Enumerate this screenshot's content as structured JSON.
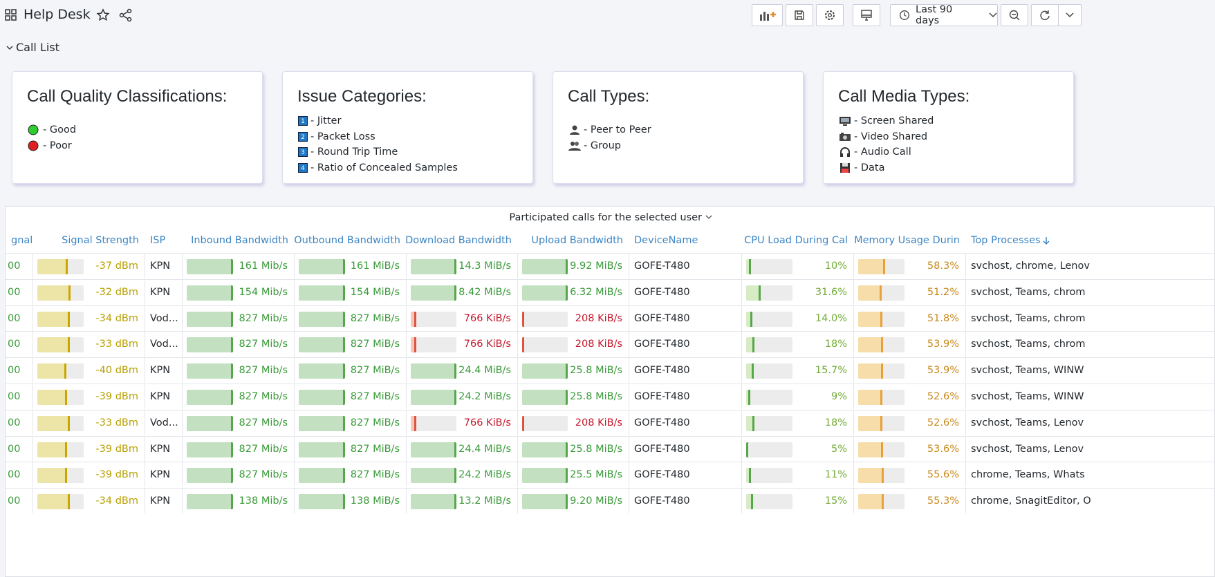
{
  "header": {
    "title": "Help Desk",
    "time_range": "Last 90 days"
  },
  "row_title": "Call List",
  "panels": [
    {
      "title": "Call Quality Classifications:",
      "items": [
        {
          "label": "- Good"
        },
        {
          "label": "- Poor"
        }
      ]
    },
    {
      "title": "Issue Categories:",
      "items": [
        {
          "badge": "1",
          "label": "- Jitter"
        },
        {
          "badge": "2",
          "label": "- Packet Loss"
        },
        {
          "badge": "3",
          "label": "- Round Trip Time"
        },
        {
          "badge": "4",
          "label": "- Ratio of Concealed Samples"
        }
      ]
    },
    {
      "title": "Call Types:",
      "items": [
        {
          "label": "- Peer to Peer"
        },
        {
          "label": "- Group"
        }
      ]
    },
    {
      "title": "Call Media Types:",
      "items": [
        {
          "label": "- Screen Shared"
        },
        {
          "label": "- Video Shared"
        },
        {
          "label": "- Audio Call"
        },
        {
          "label": "- Data"
        }
      ]
    }
  ],
  "table": {
    "title": "Participated calls for the selected user",
    "columns": [
      "gnal",
      "Signal Strength",
      "ISP",
      "Inbound Bandwidth",
      "Outbound Bandwidth",
      "Download Bandwidth",
      "Upload Bandwidth",
      "DeviceName",
      "CPU Load During Cal",
      "Memory Usage Durin",
      "Top Processes"
    ],
    "rows": [
      [
        "00",
        "-37 dBm",
        "KPN",
        "161 Mib/s",
        "161 MiB/s",
        "14.3 MiB/s",
        "9.92 MiB/s",
        "GOFE-T480",
        "10%",
        "58.3%",
        "svchost, chrome, Lenov"
      ],
      [
        "00",
        "-32 dBm",
        "KPN",
        "154 Mib/s",
        "154 MiB/s",
        "8.42 MiB/s",
        "6.32 MiB/s",
        "GOFE-T480",
        "31.6%",
        "51.2%",
        "svchost, Teams, chrom"
      ],
      [
        "00",
        "-34 dBm",
        "Vod...",
        "827 Mib/s",
        "827 MiB/s",
        "766 KiB/s",
        "208 KiB/s",
        "GOFE-T480",
        "14.0%",
        "51.8%",
        "svchost, Teams, chrom"
      ],
      [
        "00",
        "-33 dBm",
        "Vod...",
        "827 Mib/s",
        "827 MiB/s",
        "766 KiB/s",
        "208 KiB/s",
        "GOFE-T480",
        "18%",
        "53.9%",
        "svchost, Teams, chrom"
      ],
      [
        "00",
        "-40 dBm",
        "KPN",
        "827 Mib/s",
        "827 MiB/s",
        "24.4 MiB/s",
        "25.8 MiB/s",
        "GOFE-T480",
        "15.7%",
        "53.9%",
        "svchost, Teams, WINW"
      ],
      [
        "00",
        "-39 dBm",
        "KPN",
        "827 Mib/s",
        "827 MiB/s",
        "24.2 MiB/s",
        "25.8 MiB/s",
        "GOFE-T480",
        "9%",
        "52.6%",
        "svchost, Teams, WINW"
      ],
      [
        "00",
        "-33 dBm",
        "Vod...",
        "827 Mib/s",
        "827 MiB/s",
        "766 KiB/s",
        "208 KiB/s",
        "GOFE-T480",
        "18%",
        "52.6%",
        "svchost, Teams, Lenov"
      ],
      [
        "00",
        "-39 dBm",
        "KPN",
        "827 Mib/s",
        "827 MiB/s",
        "24.4 MiB/s",
        "25.8 MiB/s",
        "GOFE-T480",
        "5%",
        "53.6%",
        "svchost, Teams, Lenov"
      ],
      [
        "00",
        "-39 dBm",
        "KPN",
        "827 Mib/s",
        "827 MiB/s",
        "24.2 MiB/s",
        "25.5 MiB/s",
        "GOFE-T480",
        "11%",
        "55.6%",
        "chrome, Teams, Whats"
      ],
      [
        "00",
        "-34 dBm",
        "KPN",
        "138 Mib/s",
        "138 MiB/s",
        "13.2 MiB/s",
        "9.20 MiB/s",
        "GOFE-T480",
        "15%",
        "55.3%",
        "chrome, SnagitEditor, O"
      ]
    ]
  }
}
